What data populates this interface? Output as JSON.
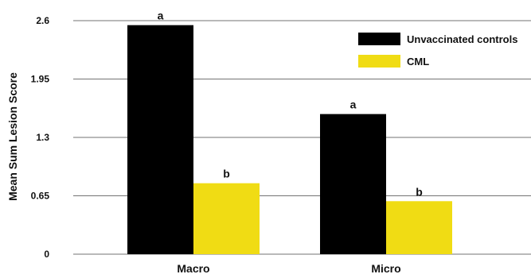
{
  "chart_data": {
    "type": "bar",
    "categories": [
      "Macro",
      "Micro"
    ],
    "series": [
      {
        "name": "Unvaccinated controls",
        "color": "#000000",
        "values": [
          2.55,
          1.56
        ],
        "labels": [
          "a",
          "a"
        ]
      },
      {
        "name": "CML",
        "color": "#f0dc14",
        "values": [
          0.79,
          0.59
        ],
        "labels": [
          "b",
          "b"
        ]
      }
    ],
    "title": "",
    "xlabel": "",
    "ylabel": "Mean Sum Lesion Score",
    "ylim": [
      0,
      2.6
    ],
    "yticks": [
      0,
      0.65,
      1.3,
      1.95,
      2.6
    ],
    "ytick_labels": [
      "0",
      "0.65",
      "1.3",
      "1.95",
      "2.6"
    ],
    "grid": true,
    "legend_position": "top-right"
  }
}
